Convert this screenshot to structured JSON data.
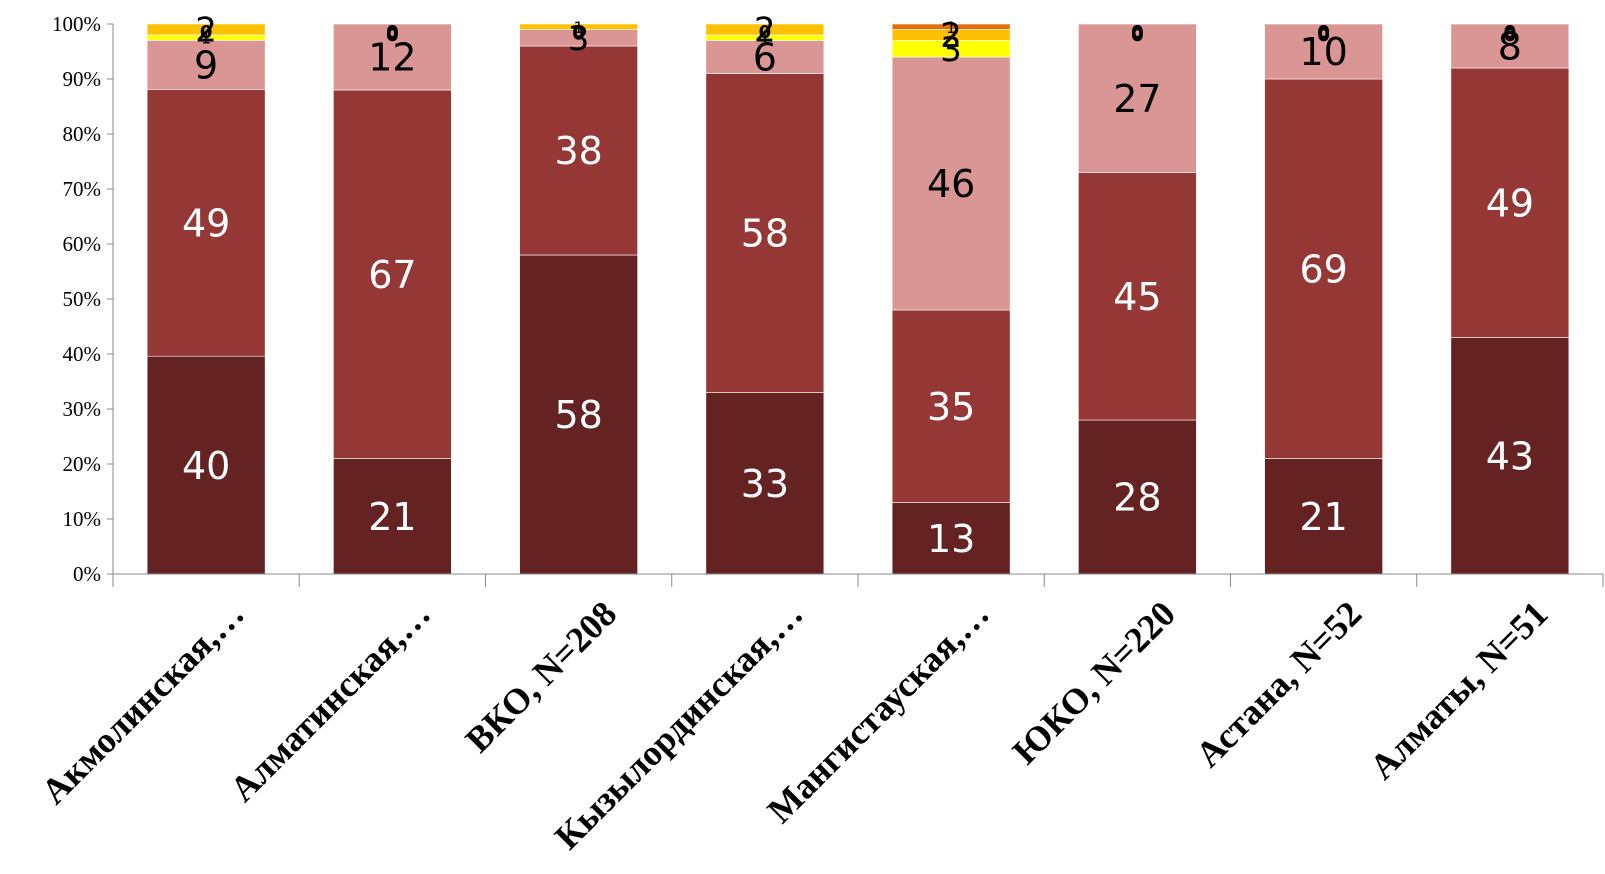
{
  "chart_data": {
    "type": "bar",
    "stacked": true,
    "normalized": true,
    "categories": [
      "Акмолинская,…",
      "Алматинская,…",
      "ВКО, N=208",
      "Кызылординская,…",
      "Мангистауская,…",
      "ЮКО, N=220",
      "Астана, N=52",
      "Алматы, N=51"
    ],
    "series": [
      {
        "values": [
          40,
          21,
          58,
          33,
          13,
          28,
          21,
          43
        ],
        "color": "#652223",
        "label_color": "#ffffff"
      },
      {
        "values": [
          49,
          67,
          38,
          58,
          35,
          45,
          69,
          49
        ],
        "color": "#953735",
        "label_color": "#ffffff"
      },
      {
        "values": [
          9,
          12,
          3,
          6,
          46,
          27,
          10,
          8
        ],
        "color": "#d99694",
        "label_color": "#000000"
      },
      {
        "values": [
          1,
          0,
          0,
          1,
          3,
          0,
          0,
          0
        ],
        "color": "#ffff00",
        "label_color": "#000000"
      },
      {
        "values": [
          2,
          0,
          1,
          2,
          2,
          0,
          0,
          0
        ],
        "color": "#ffc000",
        "label_color": "#000000"
      },
      {
        "values": [
          0,
          0,
          0,
          0,
          1,
          0,
          0,
          0
        ],
        "color": "#e46c0a",
        "label_color": "#000000"
      }
    ],
    "y_ticks": [
      "0%",
      "10%",
      "20%",
      "30%",
      "40%",
      "50%",
      "60%",
      "70%",
      "80%",
      "90%",
      "100%"
    ],
    "ylim": [
      0,
      100
    ],
    "grid": false,
    "legend": "none"
  }
}
